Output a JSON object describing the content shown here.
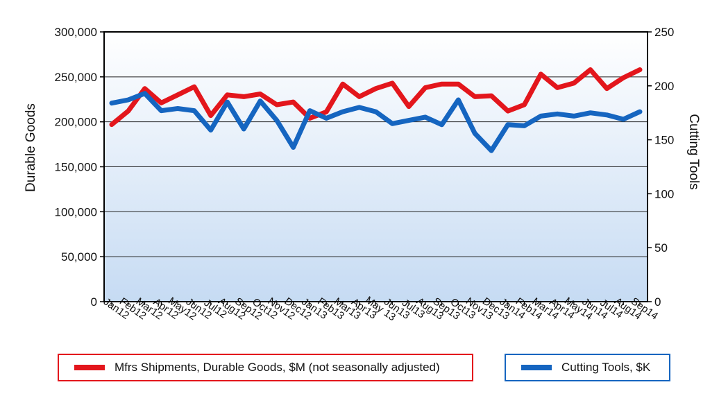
{
  "chart_data": {
    "type": "line",
    "categories": [
      "Jan12",
      "Feb12",
      "Mar12",
      "Apr12",
      "May12",
      "Jun12",
      "Jul12",
      "Aug12",
      "Sep12",
      "Oct12",
      "Nov12",
      "Dec12",
      "Jan13",
      "Feb13",
      "Mar13",
      "Apr13",
      "May 13",
      "Jun13",
      "Jul13",
      "Aug13",
      "Sep13",
      "Oct13",
      "Nov13",
      "Dec13",
      "Jan14",
      "Feb14",
      "Mar14",
      "Apr14",
      "May14",
      "Jun14",
      "Jul14",
      "Aug14",
      "Sep14"
    ],
    "series": [
      {
        "name": "Mfrs Shipments, Durable Goods, $M (not seasonally adjusted)",
        "axis": "left",
        "color": "#e3161c",
        "values": [
          197000,
          212000,
          237000,
          221000,
          230000,
          239000,
          207000,
          230000,
          228000,
          231000,
          219000,
          222000,
          204000,
          211000,
          242000,
          228000,
          237000,
          243000,
          217000,
          238000,
          242000,
          242000,
          228000,
          229000,
          212000,
          219000,
          253000,
          238000,
          243000,
          258000,
          237000,
          249000,
          258000
        ]
      },
      {
        "name": "Cutting Tools, $K",
        "axis": "right",
        "color": "#1565c0",
        "values": [
          184,
          187,
          193,
          177,
          179,
          177,
          159,
          185,
          160,
          186,
          168,
          143,
          177,
          170,
          176,
          180,
          176,
          165,
          168,
          171,
          164,
          187,
          156,
          140,
          164,
          163,
          172,
          174,
          172,
          175,
          173,
          169,
          176
        ]
      }
    ],
    "left_axis": {
      "label": "Durable Goods",
      "range": [
        0,
        300000
      ],
      "ticks": [
        "0",
        "50,000",
        "100,000",
        "150,000",
        "200,000",
        "250,000",
        "300,000"
      ]
    },
    "right_axis": {
      "label": "Cutting Tools",
      "range": [
        0,
        250
      ],
      "ticks": [
        "0",
        "50",
        "100",
        "150",
        "200",
        "250"
      ]
    },
    "grid": true,
    "legend": [
      "Mfrs Shipments, Durable Goods, $M (not seasonally adjusted)",
      "Cutting Tools, $K"
    ]
  }
}
